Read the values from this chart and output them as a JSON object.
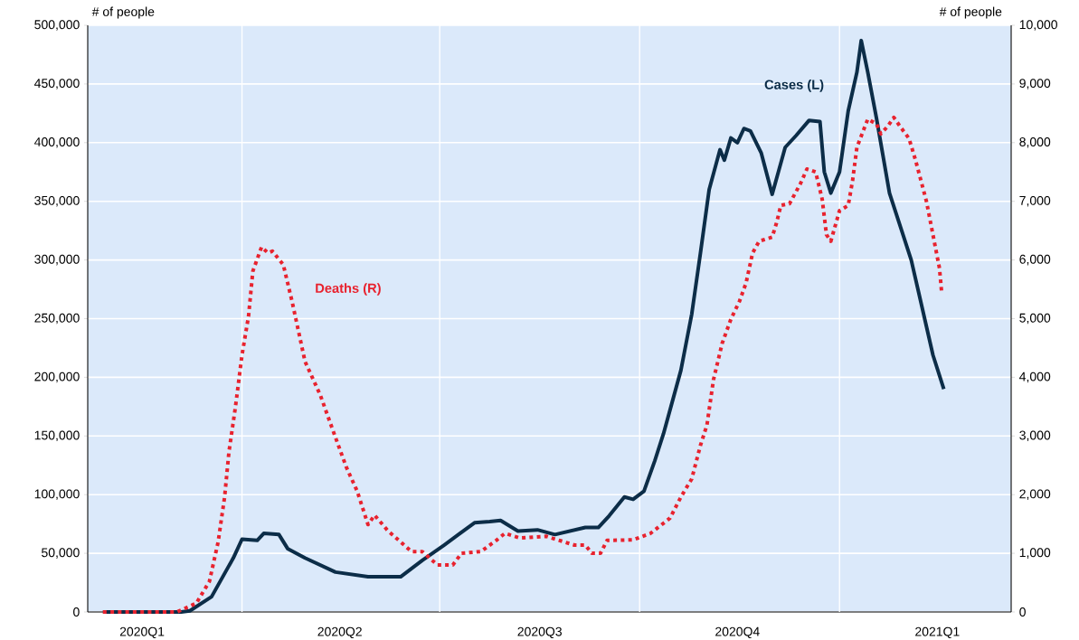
{
  "chart_data": {
    "type": "line",
    "ylabel": "# of people",
    "y2label": "# of people",
    "xlim": [
      "2020-01-21",
      "2021-03-21"
    ],
    "xticks": [
      {
        "value": "2020-02-15",
        "label": "2020Q1"
      },
      {
        "value": "2020-05-16",
        "label": "2020Q2"
      },
      {
        "value": "2020-08-16",
        "label": "2020Q3"
      },
      {
        "value": "2020-11-15",
        "label": "2020Q4"
      },
      {
        "value": "2021-02-15",
        "label": "2021Q1"
      },
      {
        "value": "2020-04-01",
        "label": null
      },
      {
        "value": "2020-07-01",
        "label": null
      },
      {
        "value": "2020-10-01",
        "label": null
      },
      {
        "value": "2021-01-01",
        "label": null
      }
    ],
    "ylim": [
      0,
      500000
    ],
    "yticks": [
      {
        "value": 0,
        "label": "0"
      },
      {
        "value": 50000,
        "label": "50,000"
      },
      {
        "value": 100000,
        "label": "100,000"
      },
      {
        "value": 150000,
        "label": "150,000"
      },
      {
        "value": 200000,
        "label": "200,000"
      },
      {
        "value": 250000,
        "label": "250,000"
      },
      {
        "value": 300000,
        "label": "300,000"
      },
      {
        "value": 350000,
        "label": "350,000"
      },
      {
        "value": 400000,
        "label": "400,000"
      },
      {
        "value": 450000,
        "label": "450,000"
      },
      {
        "value": 500000,
        "label": "500,000"
      }
    ],
    "y2lim": [
      0,
      10000
    ],
    "y2ticks": [
      {
        "value": 0,
        "label": "0"
      },
      {
        "value": 1000,
        "label": "1,000"
      },
      {
        "value": 2000,
        "label": "2,000"
      },
      {
        "value": 3000,
        "label": "3,000"
      },
      {
        "value": 4000,
        "label": "4,000"
      },
      {
        "value": 5000,
        "label": "5,000"
      },
      {
        "value": 6000,
        "label": "6,000"
      },
      {
        "value": 7000,
        "label": "7,000"
      },
      {
        "value": 8000,
        "label": "8,000"
      },
      {
        "value": 9000,
        "label": "9,000"
      },
      {
        "value": 10000,
        "label": "10,000"
      }
    ],
    "grid": true,
    "series": [
      {
        "name": "Cases (L)",
        "color": "#0c2d48",
        "line_style": "solid",
        "x": [
          "2020-01-28",
          "2020-03-04",
          "2020-03-08",
          "2020-03-18",
          "2020-03-28",
          "2020-04-01",
          "2020-04-08",
          "2020-04-11",
          "2020-04-18",
          "2020-04-22",
          "2020-04-30",
          "2020-05-14",
          "2020-05-29",
          "2020-06-13",
          "2020-06-23",
          "2020-07-03",
          "2020-07-17",
          "2020-07-24",
          "2020-07-29",
          "2020-08-06",
          "2020-08-15",
          "2020-08-23",
          "2020-09-06",
          "2020-09-12",
          "2020-09-17",
          "2020-09-24",
          "2020-09-28",
          "2020-10-03",
          "2020-10-08",
          "2020-10-12",
          "2020-10-20",
          "2020-10-25",
          "2020-10-29",
          "2020-11-02",
          "2020-11-07",
          "2020-11-09",
          "2020-11-12",
          "2020-11-15",
          "2020-11-18",
          "2020-11-21",
          "2020-11-26",
          "2020-12-01",
          "2020-12-07",
          "2020-12-12",
          "2020-12-18",
          "2020-12-23",
          "2020-12-25",
          "2020-12-28",
          "2021-01-01",
          "2021-01-05",
          "2021-01-09",
          "2021-01-11",
          "2021-01-14",
          "2021-01-18",
          "2021-01-24",
          "2021-02-03",
          "2021-02-13",
          "2021-02-18"
        ],
        "values": [
          0,
          0,
          1000,
          13000,
          46000,
          62000,
          61000,
          67000,
          66000,
          54000,
          46000,
          34000,
          30000,
          30000,
          44000,
          57000,
          76000,
          77000,
          78000,
          69000,
          70000,
          66000,
          72000,
          72000,
          82000,
          98000,
          96000,
          103000,
          129000,
          152000,
          206000,
          254000,
          306000,
          360000,
          394000,
          385000,
          404000,
          400000,
          412000,
          410000,
          391000,
          356000,
          396000,
          406000,
          419000,
          418000,
          375000,
          357000,
          375000,
          427000,
          460000,
          487000,
          460000,
          421000,
          357000,
          300000,
          219000,
          190000
        ]
      },
      {
        "name": "Deaths (R)",
        "color": "#e8222e",
        "line_style": "dotted",
        "axis": "y2",
        "x": [
          "2020-01-28",
          "2020-03-02",
          "2020-03-11",
          "2020-03-17",
          "2020-03-21",
          "2020-03-24",
          "2020-03-26",
          "2020-03-29",
          "2020-04-01",
          "2020-04-04",
          "2020-04-06",
          "2020-04-10",
          "2020-04-13",
          "2020-04-15",
          "2020-04-20",
          "2020-04-24",
          "2020-04-30",
          "2020-05-07",
          "2020-05-13",
          "2020-05-19",
          "2020-05-24",
          "2020-05-29",
          "2020-06-01",
          "2020-06-07",
          "2020-06-18",
          "2020-06-23",
          "2020-06-30",
          "2020-07-07",
          "2020-07-11",
          "2020-07-20",
          "2020-07-27",
          "2020-07-31",
          "2020-08-07",
          "2020-08-19",
          "2020-09-01",
          "2020-09-06",
          "2020-09-09",
          "2020-09-13",
          "2020-09-16",
          "2020-09-28",
          "2020-10-06",
          "2020-10-15",
          "2020-10-20",
          "2020-10-25",
          "2020-10-29",
          "2020-11-01",
          "2020-11-04",
          "2020-11-08",
          "2020-11-12",
          "2020-11-16",
          "2020-11-19",
          "2020-11-22",
          "2020-11-25",
          "2020-12-01",
          "2020-12-03",
          "2020-12-05",
          "2020-12-09",
          "2020-12-14",
          "2020-12-17",
          "2020-12-21",
          "2020-12-24",
          "2020-12-26",
          "2020-12-28",
          "2021-01-01",
          "2021-01-05",
          "2021-01-07",
          "2021-01-09",
          "2021-01-14",
          "2021-01-18",
          "2021-01-20",
          "2021-01-23",
          "2021-01-26",
          "2021-01-29",
          "2021-02-02",
          "2021-02-05",
          "2021-02-10",
          "2021-02-13",
          "2021-02-16",
          "2021-02-17"
        ],
        "values": [
          0,
          0,
          150,
          520,
          1190,
          1960,
          2730,
          3500,
          4380,
          5040,
          5810,
          6220,
          6120,
          6150,
          5920,
          5300,
          4270,
          3700,
          3080,
          2470,
          2060,
          1490,
          1650,
          1390,
          1030,
          1030,
          800,
          800,
          1000,
          1030,
          1220,
          1340,
          1260,
          1290,
          1140,
          1140,
          1000,
          1000,
          1220,
          1230,
          1340,
          1600,
          1960,
          2270,
          2840,
          3190,
          3960,
          4580,
          4990,
          5300,
          5610,
          6120,
          6320,
          6390,
          6630,
          6930,
          6960,
          7300,
          7550,
          7500,
          7040,
          6430,
          6320,
          6840,
          6930,
          7350,
          7920,
          8400,
          8320,
          8150,
          8270,
          8430,
          8270,
          8070,
          7700,
          7000,
          6430,
          5860,
          5450
        ]
      }
    ]
  }
}
